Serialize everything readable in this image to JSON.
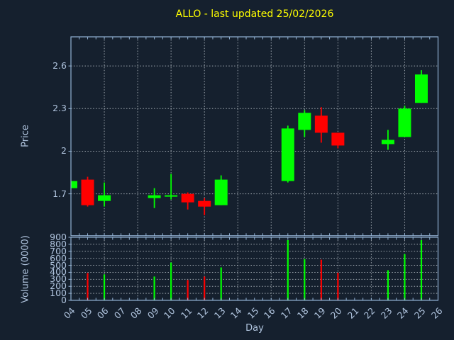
{
  "title": "ALLO - last updated 25/02/2026",
  "colors": {
    "background": "#15202e",
    "title": "#ffff00",
    "axis_border": "#93b2d4",
    "tick_label": "#b0c4de",
    "grid": "#ccd4da",
    "up": "#00ff00",
    "down": "#ff0000"
  },
  "chart_data": {
    "type": "candlestick",
    "title": "ALLO - last updated 25/02/2026",
    "xlabel": "Day",
    "xlim": [
      4,
      26
    ],
    "xticks": [
      4,
      5,
      6,
      7,
      8,
      9,
      10,
      11,
      12,
      13,
      14,
      15,
      16,
      17,
      18,
      19,
      20,
      21,
      22,
      23,
      24,
      25,
      26
    ],
    "grid_x": [
      6,
      8,
      10,
      12,
      14,
      16,
      18,
      20,
      22,
      24,
      26
    ],
    "minor_tick_step": 0.5,
    "grid_on": true,
    "price_panel": {
      "ylabel": "Price",
      "ylim": [
        1.405,
        2.805
      ],
      "yticks": [
        1.7,
        2,
        2.3,
        2.6
      ],
      "candles": [
        {
          "day": 4,
          "open": 1.74,
          "high": 1.79,
          "low": 1.74,
          "close": 1.79
        },
        {
          "day": 5,
          "open": 1.8,
          "high": 1.82,
          "low": 1.61,
          "close": 1.62
        },
        {
          "day": 6,
          "open": 1.65,
          "high": 1.78,
          "low": 1.61,
          "close": 1.69
        },
        {
          "day": 9,
          "open": 1.67,
          "high": 1.74,
          "low": 1.6,
          "close": 1.69
        },
        {
          "day": 10,
          "open": 1.68,
          "high": 1.84,
          "low": 1.66,
          "close": 1.69
        },
        {
          "day": 11,
          "open": 1.7,
          "high": 1.71,
          "low": 1.59,
          "close": 1.64
        },
        {
          "day": 12,
          "open": 1.65,
          "high": 1.67,
          "low": 1.55,
          "close": 1.61
        },
        {
          "day": 13,
          "open": 1.62,
          "high": 1.83,
          "low": 1.62,
          "close": 1.8
        },
        {
          "day": 17,
          "open": 1.79,
          "high": 2.18,
          "low": 1.78,
          "close": 2.16
        },
        {
          "day": 18,
          "open": 2.15,
          "high": 2.29,
          "low": 2.1,
          "close": 2.27
        },
        {
          "day": 19,
          "open": 2.25,
          "high": 2.31,
          "low": 2.06,
          "close": 2.13
        },
        {
          "day": 20,
          "open": 2.13,
          "high": 2.13,
          "low": 2.02,
          "close": 2.04
        },
        {
          "day": 23,
          "open": 2.05,
          "high": 2.15,
          "low": 2.01,
          "close": 2.08
        },
        {
          "day": 24,
          "open": 2.1,
          "high": 2.32,
          "low": 2.1,
          "close": 2.3
        },
        {
          "day": 25,
          "open": 2.34,
          "high": 2.57,
          "low": 2.34,
          "close": 2.54
        }
      ]
    },
    "volume_panel": {
      "ylabel": "Volume (0000)",
      "ylim": [
        0,
        900
      ],
      "yticks": [
        0,
        100,
        200,
        300,
        400,
        500,
        600,
        700,
        800,
        900
      ],
      "bars": [
        {
          "day": 5,
          "value": 390
        },
        {
          "day": 6,
          "value": 370
        },
        {
          "day": 9,
          "value": 340
        },
        {
          "day": 10,
          "value": 540
        },
        {
          "day": 11,
          "value": 290
        },
        {
          "day": 12,
          "value": 340
        },
        {
          "day": 13,
          "value": 470
        },
        {
          "day": 17,
          "value": 860
        },
        {
          "day": 18,
          "value": 590
        },
        {
          "day": 19,
          "value": 580
        },
        {
          "day": 20,
          "value": 395
        },
        {
          "day": 23,
          "value": 430
        },
        {
          "day": 24,
          "value": 660
        },
        {
          "day": 25,
          "value": 860
        }
      ]
    }
  }
}
